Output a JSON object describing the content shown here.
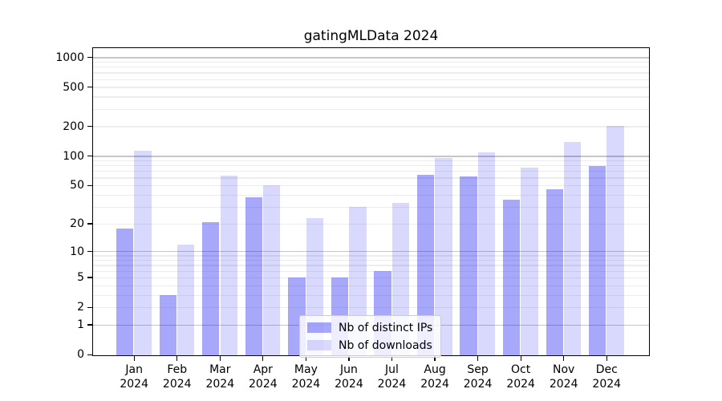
{
  "title": "gatingMLData 2024",
  "chart_data": {
    "type": "bar",
    "title": "gatingMLData 2024",
    "categories": [
      "Jan 2024",
      "Feb 2024",
      "Mar 2024",
      "Apr 2024",
      "May 2024",
      "Jun 2024",
      "Jul 2024",
      "Aug 2024",
      "Sep 2024",
      "Oct 2024",
      "Nov 2024",
      "Dec 2024"
    ],
    "series": [
      {
        "name": "Nb of distinct IPs",
        "color": "rgba(0,0,240,0.34)",
        "values": [
          18,
          3,
          21,
          38,
          5,
          5,
          6,
          65,
          62,
          36,
          46,
          80
        ]
      },
      {
        "name": "Nb of downloads",
        "color": "rgba(0,0,240,0.15)",
        "values": [
          115,
          12,
          64,
          51,
          23,
          30,
          33,
          96,
          109,
          77,
          140,
          203
        ]
      }
    ],
    "xlabel": "",
    "ylabel": "",
    "y_scale": "log1p",
    "y_ticks": [
      0,
      1,
      2,
      5,
      10,
      20,
      50,
      100,
      200,
      500,
      1000
    ],
    "y_major_gridlines": [
      1,
      10,
      100,
      1000
    ],
    "y_minor_gridline_subs": [
      2,
      3,
      4,
      5,
      6,
      7,
      8,
      9
    ],
    "ylim": [
      0,
      1300
    ],
    "grid": true,
    "legend_position": "lower center",
    "colors": {
      "bar_distinct_ips": "rgba(0,0,240,0.34)",
      "bar_downloads": "rgba(0,0,240,0.15)",
      "major_grid": "#c6c6c6",
      "minor_grid": "#ededed",
      "axis": "#000000",
      "background": "#ffffff",
      "legend_border": "#cccccc"
    }
  }
}
